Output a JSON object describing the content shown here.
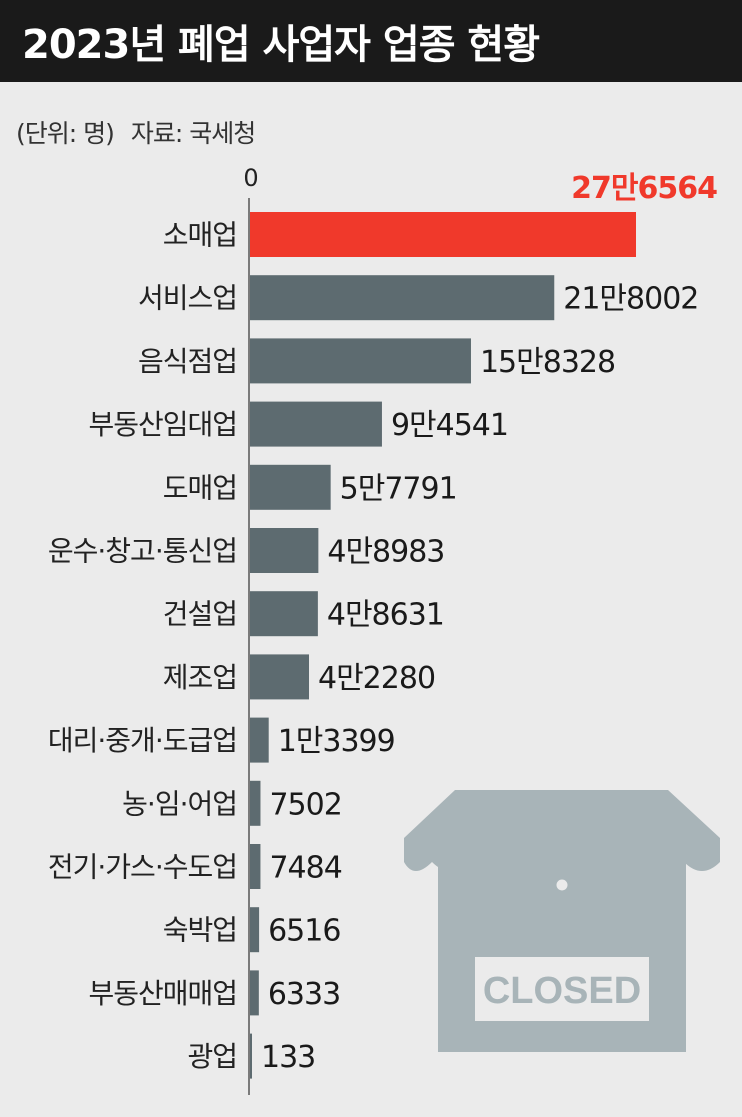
{
  "title": "2023년 폐업 사업자 업종 현황",
  "unit_text": "(단위: 명)",
  "source_text": "자료: 국세청",
  "zero_label": "0",
  "colors": {
    "highlight": "#f0392b",
    "bar": "#5d6b70",
    "icon": "#a8b4b8",
    "title_bg": "#1a1a1a",
    "background": "#ebebeb"
  },
  "icon": {
    "name": "closed-store-icon",
    "sign_text": "CLOSED"
  },
  "chart_data": {
    "type": "bar",
    "orientation": "horizontal",
    "categories": [
      "소매업",
      "서비스업",
      "음식점업",
      "부동산임대업",
      "도매업",
      "운수·창고·통신업",
      "건설업",
      "제조업",
      "대리·중개·도급업",
      "농·임·어업",
      "전기·가스·수도업",
      "숙박업",
      "부동산매매업",
      "광업"
    ],
    "values": [
      276564,
      218002,
      158328,
      94541,
      57791,
      48983,
      48631,
      42280,
      13399,
      7502,
      7484,
      6516,
      6333,
      133
    ],
    "value_labels": [
      "27만6564",
      "21만8002",
      "15만8328",
      "9만4541",
      "5만7791",
      "4만8983",
      "4만8631",
      "4만2280",
      "1만3399",
      "7502",
      "7484",
      "6516",
      "6333",
      "133"
    ],
    "highlight_index": 0,
    "xlim": [
      0,
      276564
    ]
  }
}
